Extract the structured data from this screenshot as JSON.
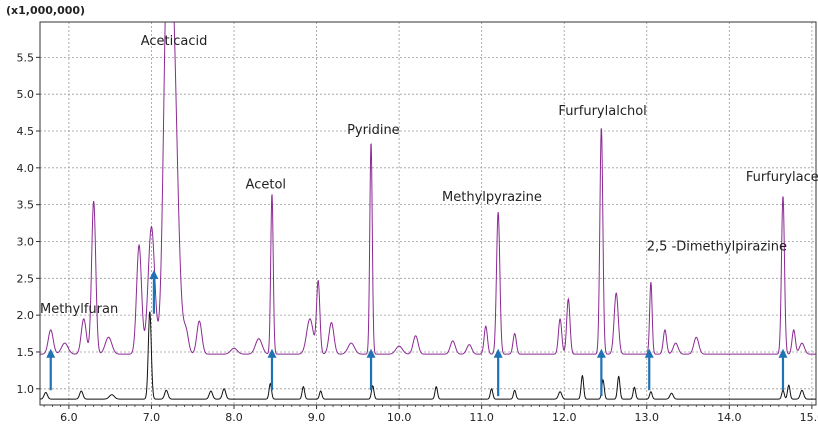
{
  "chart_data": {
    "type": "line",
    "title": "",
    "xlabel": "",
    "ylabel": "",
    "y_multiplier_label": "(x1,000,000)",
    "xlim": [
      5.65,
      15.05
    ],
    "ylim": [
      0.78,
      5.98
    ],
    "grid": true,
    "x_ticks": [
      6.0,
      7.0,
      8.0,
      9.0,
      10.0,
      11.0,
      12.0,
      13.0,
      14.0,
      15.0
    ],
    "x_tick_labels": [
      "6.0",
      "7.0",
      "8.0",
      "9.0",
      "10.0",
      "11.0",
      "12.0",
      "13.0",
      "14.0",
      "15.0"
    ],
    "y_ticks": [
      1.0,
      1.5,
      2.0,
      2.5,
      3.0,
      3.5,
      4.0,
      4.5,
      5.0,
      5.5
    ],
    "y_tick_labels": [
      "1.0",
      "1.5",
      "2.0",
      "2.5",
      "3.0",
      "3.5",
      "4.0",
      "4.5",
      "5.0",
      "5.5"
    ],
    "series": [
      {
        "color": "#8b2a93",
        "baseline": 1.47,
        "peaks": [
          [
            5.78,
            1.8,
            0.03
          ],
          [
            5.95,
            1.62,
            0.04
          ],
          [
            6.18,
            1.95,
            0.03
          ],
          [
            6.3,
            3.55,
            0.025
          ],
          [
            6.48,
            1.7,
            0.04
          ],
          [
            6.85,
            2.95,
            0.03
          ],
          [
            7.0,
            3.2,
            0.04
          ],
          [
            7.18,
            4.4,
            0.04
          ],
          [
            7.25,
            6.2,
            0.06
          ],
          [
            7.42,
            1.75,
            0.03
          ],
          [
            7.58,
            1.92,
            0.03
          ],
          [
            8.0,
            1.55,
            0.04
          ],
          [
            8.3,
            1.68,
            0.04
          ],
          [
            8.46,
            3.65,
            0.015
          ],
          [
            8.92,
            1.95,
            0.04
          ],
          [
            9.02,
            2.45,
            0.02
          ],
          [
            9.18,
            1.9,
            0.03
          ],
          [
            9.42,
            1.62,
            0.04
          ],
          [
            9.66,
            4.35,
            0.015
          ],
          [
            10.0,
            1.58,
            0.04
          ],
          [
            10.2,
            1.72,
            0.03
          ],
          [
            10.65,
            1.65,
            0.03
          ],
          [
            10.85,
            1.6,
            0.03
          ],
          [
            11.05,
            1.85,
            0.02
          ],
          [
            11.2,
            3.4,
            0.02
          ],
          [
            11.4,
            1.75,
            0.02
          ],
          [
            11.95,
            1.95,
            0.02
          ],
          [
            12.05,
            2.22,
            0.02
          ],
          [
            12.45,
            4.55,
            0.018
          ],
          [
            12.63,
            2.3,
            0.025
          ],
          [
            13.05,
            2.45,
            0.015
          ],
          [
            13.22,
            1.8,
            0.02
          ],
          [
            13.35,
            1.62,
            0.03
          ],
          [
            13.6,
            1.7,
            0.03
          ],
          [
            14.65,
            3.62,
            0.018
          ],
          [
            14.78,
            1.8,
            0.02
          ],
          [
            14.88,
            1.62,
            0.03
          ]
        ]
      },
      {
        "color": "#111111",
        "baseline": 0.86,
        "peaks": [
          [
            5.72,
            0.95,
            0.02
          ],
          [
            6.15,
            0.97,
            0.02
          ],
          [
            6.52,
            0.92,
            0.03
          ],
          [
            6.98,
            2.05,
            0.018
          ],
          [
            7.18,
            0.98,
            0.02
          ],
          [
            7.72,
            0.97,
            0.02
          ],
          [
            7.88,
            1.0,
            0.02
          ],
          [
            8.44,
            1.07,
            0.015
          ],
          [
            8.84,
            1.03,
            0.015
          ],
          [
            9.05,
            0.97,
            0.015
          ],
          [
            9.68,
            1.04,
            0.015
          ],
          [
            10.45,
            1.03,
            0.015
          ],
          [
            11.12,
            1.0,
            0.015
          ],
          [
            11.4,
            0.98,
            0.015
          ],
          [
            11.95,
            0.96,
            0.02
          ],
          [
            12.22,
            1.18,
            0.015
          ],
          [
            12.47,
            1.12,
            0.015
          ],
          [
            12.66,
            1.17,
            0.015
          ],
          [
            12.85,
            1.02,
            0.015
          ],
          [
            13.05,
            0.96,
            0.015
          ],
          [
            13.3,
            0.94,
            0.02
          ],
          [
            14.65,
            0.98,
            0.015
          ],
          [
            14.72,
            1.05,
            0.015
          ],
          [
            14.88,
            0.98,
            0.02
          ]
        ]
      }
    ],
    "annotations": [
      {
        "text": "Methylfuran",
        "x": 5.65,
        "y": 2.03,
        "arrow": [
          5.78,
          0.98,
          1.53
        ]
      },
      {
        "text": "Aceticacid",
        "x": 6.87,
        "y": 5.67,
        "arrow": [
          7.03,
          2.02,
          2.6
        ]
      },
      {
        "text": "Acetol",
        "x": 8.14,
        "y": 3.72,
        "arrow": [
          8.46,
          0.98,
          1.53
        ]
      },
      {
        "text": "Pyridine",
        "x": 9.37,
        "y": 4.46,
        "arrow": [
          9.66,
          0.98,
          1.53
        ]
      },
      {
        "text": "Methylpyrazine",
        "x": 10.52,
        "y": 3.55,
        "arrow": [
          11.2,
          0.9,
          1.53
        ]
      },
      {
        "text": "Furfurylalchol",
        "x": 11.93,
        "y": 4.72,
        "arrow": [
          12.45,
          0.9,
          1.53
        ]
      },
      {
        "text": "2,5 -Dimethylpirazine",
        "x": 13.0,
        "y": 2.88,
        "arrow": [
          13.03,
          0.98,
          1.53
        ]
      },
      {
        "text": "Furfurylacetate",
        "x": 14.2,
        "y": 3.82,
        "arrow": [
          14.65,
          0.98,
          1.53
        ]
      }
    ],
    "arrow_color": "#1f72b4"
  }
}
